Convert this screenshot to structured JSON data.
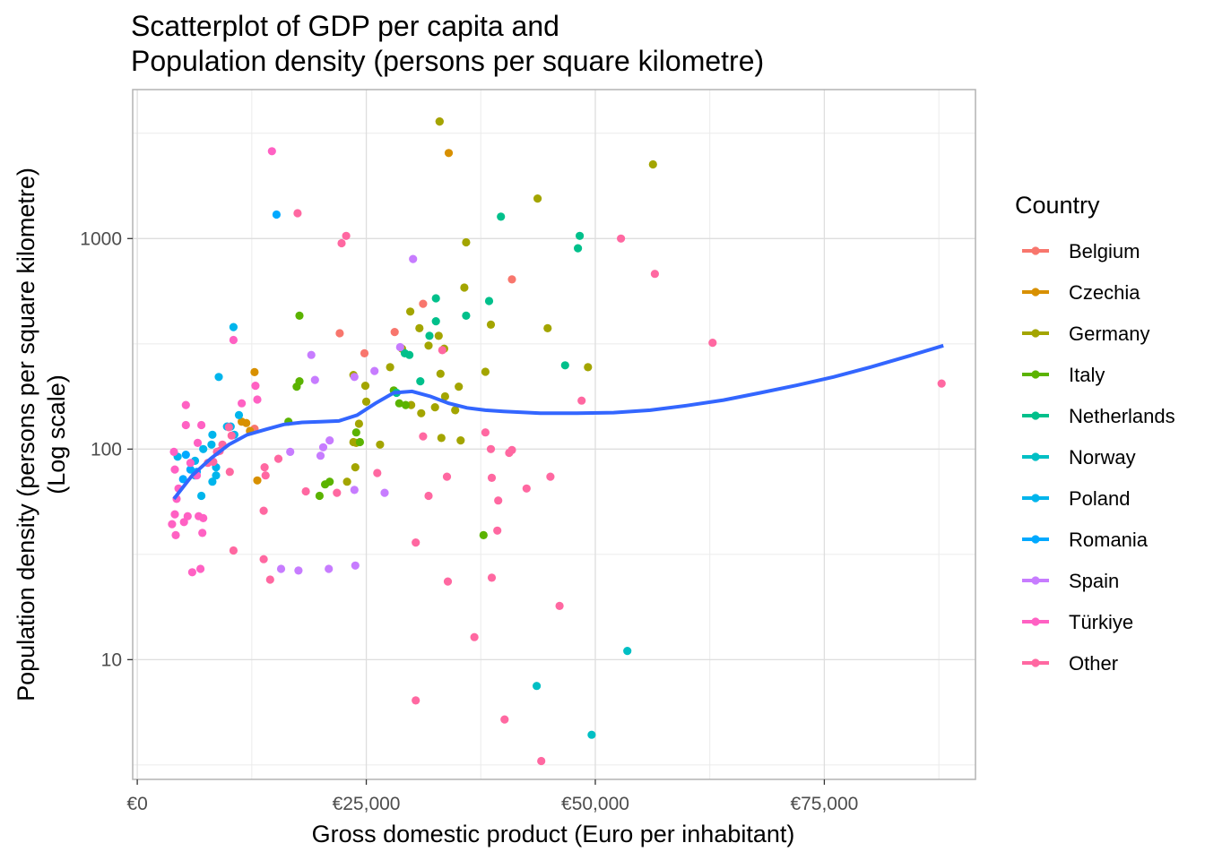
{
  "chart_data": {
    "type": "scatter",
    "title": [
      "Scatterplot of GDP per capita and",
      "Population density (persons per square kilometre)"
    ],
    "xlabel": "Gross domestic product (Euro per inhabitant)",
    "ylabel": [
      "Population density (persons per square kilometre)",
      "(Log scale)"
    ],
    "xlim": [
      -500,
      91500
    ],
    "ylim": [
      2.7,
      5100
    ],
    "y_scale": "log10",
    "x_ticks": [
      {
        "value": 0,
        "label": "€0"
      },
      {
        "value": 25000,
        "label": "€25,000"
      },
      {
        "value": 50000,
        "label": "€50,000"
      },
      {
        "value": 75000,
        "label": "€75,000"
      }
    ],
    "y_ticks": [
      {
        "value": 10,
        "label": "10"
      },
      {
        "value": 100,
        "label": "100"
      },
      {
        "value": 1000,
        "label": "1000"
      }
    ],
    "grid": true,
    "legend": {
      "title": "Country",
      "position": "right"
    },
    "series": [
      {
        "name": "Belgium",
        "color": "#F8766D",
        "points": [
          [
            33000,
            3600
          ],
          [
            12800,
            125
          ],
          [
            22100,
            355
          ],
          [
            28100,
            360
          ],
          [
            24800,
            285
          ],
          [
            31200,
            490
          ],
          [
            40900,
            640
          ]
        ]
      },
      {
        "name": "Czechia",
        "color": "#D89000",
        "points": [
          [
            34000,
            2550
          ],
          [
            12800,
            232
          ],
          [
            11400,
            135
          ],
          [
            13100,
            71
          ],
          [
            12300,
            122
          ],
          [
            11900,
            133
          ]
        ]
      },
      {
        "name": "Germany",
        "color": "#A3A500",
        "points": [
          [
            33000,
            3600
          ],
          [
            56300,
            2250
          ],
          [
            43700,
            1550
          ],
          [
            35900,
            960
          ],
          [
            35700,
            585
          ],
          [
            38600,
            390
          ],
          [
            44800,
            375
          ],
          [
            49200,
            245
          ],
          [
            32900,
            345
          ],
          [
            31800,
            310
          ],
          [
            33500,
            300
          ],
          [
            29800,
            450
          ],
          [
            30800,
            375
          ],
          [
            28900,
            300
          ],
          [
            27600,
            245
          ],
          [
            38000,
            233
          ],
          [
            33100,
            228
          ],
          [
            35100,
            198
          ],
          [
            33600,
            178
          ],
          [
            32500,
            158
          ],
          [
            29900,
            162
          ],
          [
            31000,
            148
          ],
          [
            34700,
            153
          ],
          [
            35300,
            110
          ],
          [
            33200,
            113
          ],
          [
            25000,
            168
          ],
          [
            26500,
            105
          ],
          [
            23600,
            225
          ],
          [
            24200,
            132
          ],
          [
            24900,
            200
          ],
          [
            23600,
            108
          ],
          [
            23800,
            82
          ],
          [
            23900,
            107
          ],
          [
            22900,
            70
          ]
        ]
      },
      {
        "name": "Italy",
        "color": "#5BB300",
        "points": [
          [
            17700,
            430
          ],
          [
            17700,
            210
          ],
          [
            17400,
            198
          ],
          [
            28000,
            190
          ],
          [
            28600,
            165
          ],
          [
            29300,
            162
          ],
          [
            23900,
            120
          ],
          [
            24300,
            108
          ],
          [
            16500,
            135
          ],
          [
            21000,
            70
          ],
          [
            20500,
            68
          ],
          [
            19900,
            60
          ],
          [
            37800,
            39
          ]
        ]
      },
      {
        "name": "Netherlands",
        "color": "#00C08B",
        "points": [
          [
            39700,
            1270
          ],
          [
            48300,
            1030
          ],
          [
            48100,
            900
          ],
          [
            38400,
            505
          ],
          [
            32600,
            520
          ],
          [
            35900,
            430
          ],
          [
            31900,
            345
          ],
          [
            32600,
            405
          ],
          [
            46700,
            250
          ],
          [
            29200,
            285
          ],
          [
            29700,
            280
          ],
          [
            30900,
            210
          ],
          [
            28300,
            185
          ]
        ]
      },
      {
        "name": "Norway",
        "color": "#00BFC4",
        "points": [
          [
            53500,
            11
          ],
          [
            43600,
            7.5
          ],
          [
            49600,
            4.4
          ]
        ]
      },
      {
        "name": "Poland",
        "color": "#00B5EC",
        "points": [
          [
            10500,
            380
          ],
          [
            8900,
            220
          ],
          [
            11100,
            145
          ],
          [
            10200,
            128
          ],
          [
            10600,
            117
          ],
          [
            9800,
            128
          ],
          [
            8600,
            82
          ],
          [
            8200,
            117
          ],
          [
            8100,
            105
          ],
          [
            7200,
            100
          ],
          [
            7000,
            60
          ],
          [
            6300,
            75
          ],
          [
            6300,
            88
          ],
          [
            8200,
            70
          ],
          [
            8600,
            75
          ],
          [
            4400,
            92
          ]
        ]
      },
      {
        "name": "Romania",
        "color": "#00A9FF",
        "points": [
          [
            15200,
            1300
          ],
          [
            5300,
            94
          ],
          [
            5000,
            72
          ],
          [
            5800,
            80
          ],
          [
            6500,
            78
          ]
        ]
      },
      {
        "name": "Spain",
        "color": "#C77CFF",
        "points": [
          [
            30100,
            800
          ],
          [
            28700,
            305
          ],
          [
            19000,
            280
          ],
          [
            25900,
            235
          ],
          [
            23700,
            220
          ],
          [
            19400,
            213
          ],
          [
            21000,
            110
          ],
          [
            20000,
            93
          ],
          [
            20300,
            102
          ],
          [
            16700,
            97
          ],
          [
            23700,
            64
          ],
          [
            27000,
            62
          ],
          [
            23800,
            28
          ],
          [
            20900,
            27
          ],
          [
            17600,
            26.5
          ],
          [
            15700,
            27
          ]
        ]
      },
      {
        "name": "Türkiye",
        "color": "#FF61C3",
        "points": [
          [
            14700,
            2600
          ],
          [
            10500,
            330
          ],
          [
            12900,
            200
          ],
          [
            11400,
            165
          ],
          [
            13100,
            172
          ],
          [
            5300,
            162
          ],
          [
            5300,
            130
          ],
          [
            4000,
            97
          ],
          [
            6600,
            107
          ],
          [
            7000,
            130
          ],
          [
            5800,
            86
          ],
          [
            4100,
            80
          ],
          [
            4500,
            65
          ],
          [
            6500,
            75
          ],
          [
            4300,
            58
          ],
          [
            5100,
            45
          ],
          [
            4100,
            49
          ],
          [
            5500,
            48
          ],
          [
            6700,
            48
          ],
          [
            7200,
            47
          ],
          [
            3800,
            44
          ],
          [
            7100,
            40
          ],
          [
            4200,
            39
          ],
          [
            6900,
            27
          ],
          [
            6000,
            26
          ]
        ]
      },
      {
        "name": "Other",
        "color": "#FF68A1",
        "points": [
          [
            17500,
            1320
          ],
          [
            22800,
            1030
          ],
          [
            22300,
            950
          ],
          [
            52800,
            1000
          ],
          [
            56500,
            680
          ],
          [
            62800,
            320
          ],
          [
            87800,
            205
          ],
          [
            48500,
            170
          ],
          [
            33300,
            295
          ],
          [
            38000,
            120
          ],
          [
            31200,
            115
          ],
          [
            40900,
            99
          ],
          [
            40600,
            96
          ],
          [
            38600,
            100
          ],
          [
            15400,
            90
          ],
          [
            14000,
            75
          ],
          [
            26200,
            77
          ],
          [
            45100,
            74
          ],
          [
            33800,
            74
          ],
          [
            38700,
            73
          ],
          [
            10100,
            78
          ],
          [
            13900,
            82
          ],
          [
            42500,
            65
          ],
          [
            39400,
            57
          ],
          [
            31800,
            60
          ],
          [
            18400,
            63
          ],
          [
            21800,
            62
          ],
          [
            13800,
            51
          ],
          [
            39300,
            41
          ],
          [
            30400,
            36
          ],
          [
            10500,
            33
          ],
          [
            13800,
            30
          ],
          [
            33900,
            23.5
          ],
          [
            14500,
            24
          ],
          [
            38700,
            24.5
          ],
          [
            46100,
            18
          ],
          [
            36800,
            12.8
          ],
          [
            30400,
            6.4
          ],
          [
            40100,
            5.2
          ],
          [
            44100,
            3.3
          ],
          [
            10300,
            116
          ],
          [
            10000,
            127
          ],
          [
            9300,
            105
          ],
          [
            9000,
            98
          ],
          [
            8700,
            97
          ],
          [
            8300,
            87
          ],
          [
            7700,
            86
          ]
        ]
      }
    ],
    "trend_line": {
      "color": "#3366FF",
      "points": [
        [
          4000,
          58
        ],
        [
          6000,
          75
        ],
        [
          8000,
          90
        ],
        [
          10000,
          105
        ],
        [
          12000,
          117
        ],
        [
          14000,
          124
        ],
        [
          16000,
          131
        ],
        [
          18000,
          134
        ],
        [
          20000,
          135
        ],
        [
          22000,
          136
        ],
        [
          24000,
          145
        ],
        [
          26000,
          165
        ],
        [
          28000,
          185
        ],
        [
          30000,
          188
        ],
        [
          32000,
          178
        ],
        [
          34000,
          165
        ],
        [
          36000,
          157
        ],
        [
          38000,
          153
        ],
        [
          40000,
          151
        ],
        [
          44000,
          148
        ],
        [
          48000,
          148
        ],
        [
          52000,
          149
        ],
        [
          56000,
          153
        ],
        [
          60000,
          161
        ],
        [
          64000,
          171
        ],
        [
          68000,
          185
        ],
        [
          72000,
          201
        ],
        [
          76000,
          220
        ],
        [
          80000,
          245
        ],
        [
          84000,
          275
        ],
        [
          88000,
          310
        ]
      ]
    }
  }
}
